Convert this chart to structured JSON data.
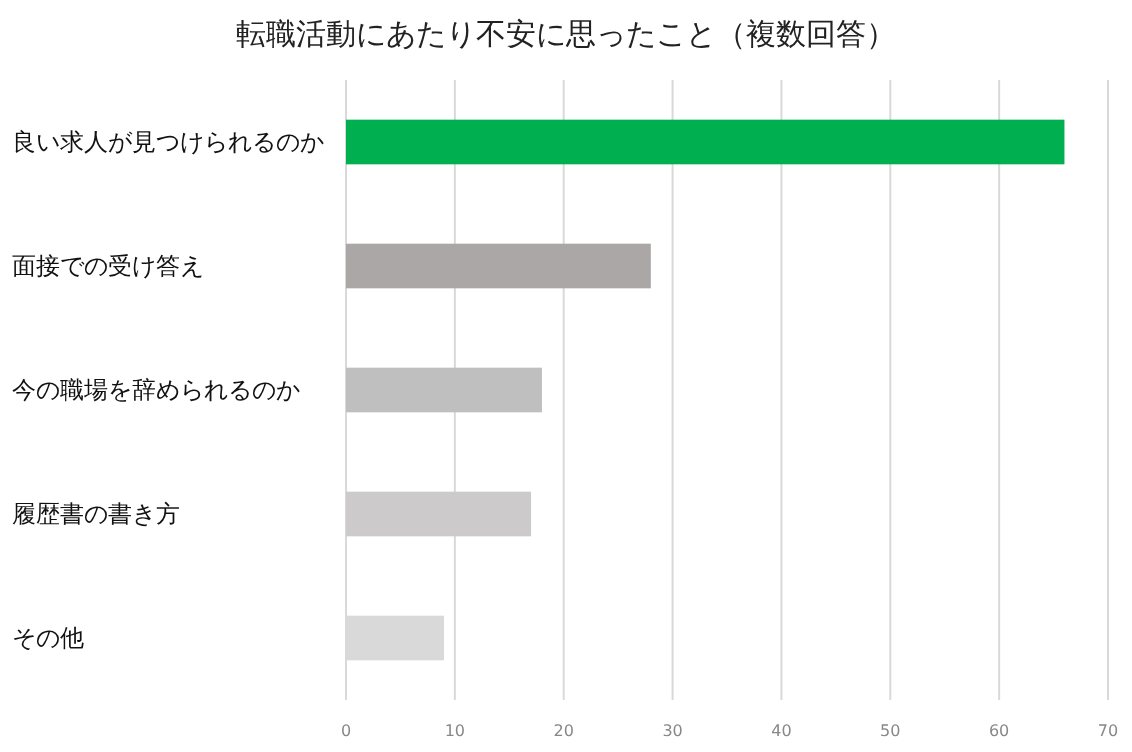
{
  "chart_data": {
    "type": "bar",
    "orientation": "horizontal",
    "title": "転職活動にあたり不安に思ったこと（複数回答）",
    "categories": [
      "良い求人が見つけられるのか",
      "面接での受け答え",
      "今の職場を辞められるのか",
      "履歴書の書き方",
      "その他"
    ],
    "values": [
      66,
      28,
      18,
      17,
      9
    ],
    "colors": [
      "#00b050",
      "#aba7a7",
      "#bfbfbf",
      "#cccaca",
      "#d9d9d9"
    ],
    "xlim": [
      0,
      70
    ],
    "xticks": [
      0,
      10,
      20,
      30,
      40,
      50,
      60,
      70
    ],
    "grid": "x"
  }
}
